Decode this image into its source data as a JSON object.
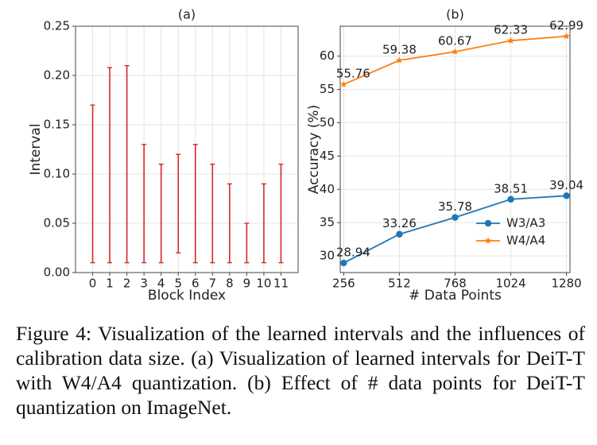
{
  "chart_data": [
    {
      "type": "range",
      "title": "(a)",
      "xlabel": "Block Index",
      "ylabel": "Interval",
      "categories": [
        "0",
        "1",
        "2",
        "3",
        "4",
        "5",
        "6",
        "7",
        "8",
        "9",
        "10",
        "11"
      ],
      "low": [
        0.01,
        0.01,
        0.01,
        0.01,
        0.01,
        0.02,
        0.01,
        0.01,
        0.01,
        0.01,
        0.01,
        0.01
      ],
      "high": [
        0.17,
        0.208,
        0.21,
        0.13,
        0.11,
        0.12,
        0.13,
        0.11,
        0.09,
        0.05,
        0.09,
        0.11
      ],
      "color": "#d62728",
      "grid": true,
      "ylim": [
        0,
        0.25
      ],
      "yticks": [
        {
          "value": 0,
          "label": "0.00"
        },
        {
          "value": 0.05,
          "label": "0.05"
        },
        {
          "value": 0.1,
          "label": "0.10"
        },
        {
          "value": 0.15,
          "label": "0.15"
        },
        {
          "value": 0.2,
          "label": "0.20"
        },
        {
          "value": 0.25,
          "label": "0.25"
        }
      ]
    },
    {
      "type": "line",
      "title": "(b)",
      "xlabel": "# Data Points",
      "ylabel": "Accuracy (%)",
      "x": [
        256,
        512,
        768,
        1024,
        1280
      ],
      "series": [
        {
          "name": "W3/A3",
          "color": "#1f77b4",
          "marker": "circle",
          "values": [
            28.94,
            33.26,
            35.78,
            38.51,
            39.04
          ]
        },
        {
          "name": "W4/A4",
          "color": "#ff7f0e",
          "marker": "star",
          "values": [
            55.76,
            59.38,
            60.67,
            62.33,
            62.99
          ]
        }
      ],
      "xlim": [
        240,
        1296
      ],
      "ylim": [
        27.5,
        64.5
      ],
      "xticks": [
        256,
        512,
        768,
        1024,
        1280
      ],
      "yticks": [
        30,
        35,
        40,
        45,
        50,
        55,
        60
      ],
      "grid": true,
      "legend": "lower right",
      "data_labels": true
    }
  ],
  "caption": "Figure 4: Visualization of the learned intervals and the influences of calibration data size. (a) Visualization of learned intervals for DeiT-T with W4/A4 quantization. (b) Effect of # data points for DeiT-T quantization on ImageNet."
}
